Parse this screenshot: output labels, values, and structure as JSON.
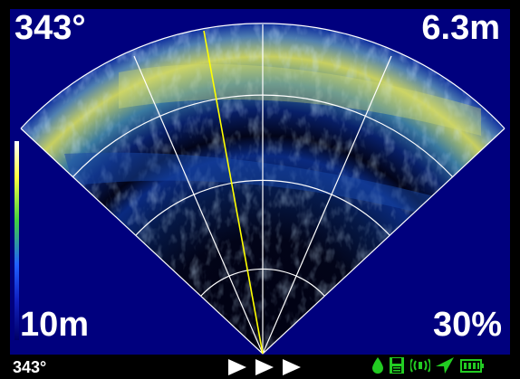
{
  "display": {
    "heading": "343°",
    "range": "6.3m",
    "depth": "10m",
    "gain": "30%"
  },
  "status_bar": {
    "heading": "343°",
    "icons": [
      "play-arrow-icon",
      "play-arrow-icon",
      "play-arrow-icon",
      "water-drop-icon",
      "save-icon",
      "vibration-icon",
      "gps-arrow-icon",
      "battery-icon"
    ]
  },
  "colors": {
    "background": "#00007e",
    "grid": "#ffffff",
    "heading_line": "#ffff00",
    "status_icons": "#22cc22",
    "arrows": "#ffffff"
  }
}
